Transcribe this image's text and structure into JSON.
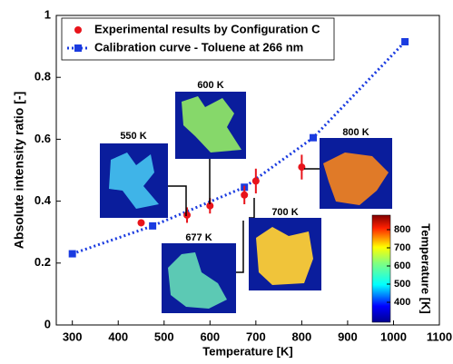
{
  "chart_data": {
    "type": "scatter",
    "xlabel": "Temperature [K]",
    "ylabel": "Absolute intensity ratio [-]",
    "xlim": [
      265,
      1100
    ],
    "xticks": [
      300,
      400,
      500,
      600,
      700,
      800,
      900,
      1000,
      1100
    ],
    "ylim": [
      0,
      1
    ],
    "yticks": [
      0,
      0.2,
      0.4,
      0.6,
      0.8,
      1
    ],
    "legend": "upper left",
    "series": [
      {
        "name": "Experimental results by Configuration C",
        "color": "#e8141b",
        "style": "markers",
        "x": [
          450,
          550,
          600,
          675,
          700,
          800
        ],
        "values": [
          0.33,
          0.355,
          0.385,
          0.42,
          0.465,
          0.51
        ],
        "errors": [
          null,
          0.025,
          0.025,
          0.03,
          0.04,
          0.04
        ]
      },
      {
        "name": "Calibration curve - Toluene at 266 nm",
        "color": "#1a3be0",
        "style": "dotted-line",
        "x": [
          300,
          475,
          675,
          825,
          1025
        ],
        "values": [
          0.23,
          0.32,
          0.445,
          0.605,
          0.915
        ]
      }
    ],
    "insets": [
      "550 K",
      "600 K",
      "677 K",
      "700 K",
      "800 K"
    ],
    "colorbar": {
      "label": "Temperature [K]",
      "lim": [
        290,
        880
      ],
      "ticks": [
        400,
        500,
        600,
        700,
        800
      ]
    }
  }
}
